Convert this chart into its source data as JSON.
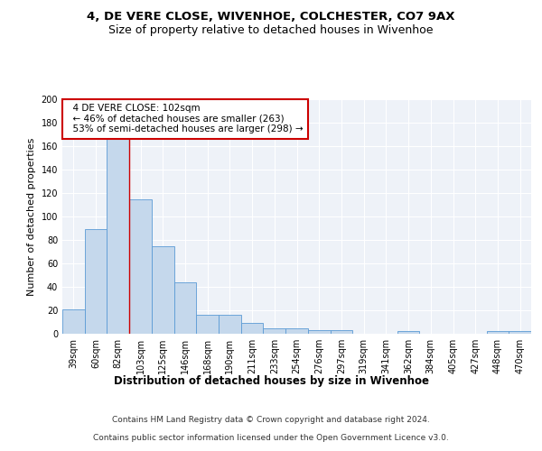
{
  "title1": "4, DE VERE CLOSE, WIVENHOE, COLCHESTER, CO7 9AX",
  "title2": "Size of property relative to detached houses in Wivenhoe",
  "xlabel": "Distribution of detached houses by size in Wivenhoe",
  "ylabel": "Number of detached properties",
  "categories": [
    "39sqm",
    "60sqm",
    "82sqm",
    "103sqm",
    "125sqm",
    "146sqm",
    "168sqm",
    "190sqm",
    "211sqm",
    "233sqm",
    "254sqm",
    "276sqm",
    "297sqm",
    "319sqm",
    "341sqm",
    "362sqm",
    "384sqm",
    "405sqm",
    "427sqm",
    "448sqm",
    "470sqm"
  ],
  "values": [
    21,
    89,
    167,
    115,
    75,
    44,
    16,
    16,
    9,
    5,
    5,
    3,
    3,
    0,
    0,
    2,
    0,
    0,
    0,
    2,
    2
  ],
  "bar_color": "#c5d8ec",
  "bar_edge_color": "#5b9bd5",
  "vline_x_index": 2.5,
  "annotation_line1": "  4 DE VERE CLOSE: 102sqm",
  "annotation_line2": "  ← 46% of detached houses are smaller (263)",
  "annotation_line3": "  53% of semi-detached houses are larger (298) →",
  "annotation_box_color": "#ffffff",
  "annotation_box_edge_color": "#cc0000",
  "ylim": [
    0,
    200
  ],
  "yticks": [
    0,
    20,
    40,
    60,
    80,
    100,
    120,
    140,
    160,
    180,
    200
  ],
  "footer1": "Contains HM Land Registry data © Crown copyright and database right 2024.",
  "footer2": "Contains public sector information licensed under the Open Government Licence v3.0.",
  "background_color": "#eef2f8",
  "grid_color": "#ffffff",
  "title1_fontsize": 9.5,
  "title2_fontsize": 9,
  "axis_label_fontsize": 8,
  "tick_fontsize": 7,
  "annotation_fontsize": 7.5,
  "footer_fontsize": 6.5
}
